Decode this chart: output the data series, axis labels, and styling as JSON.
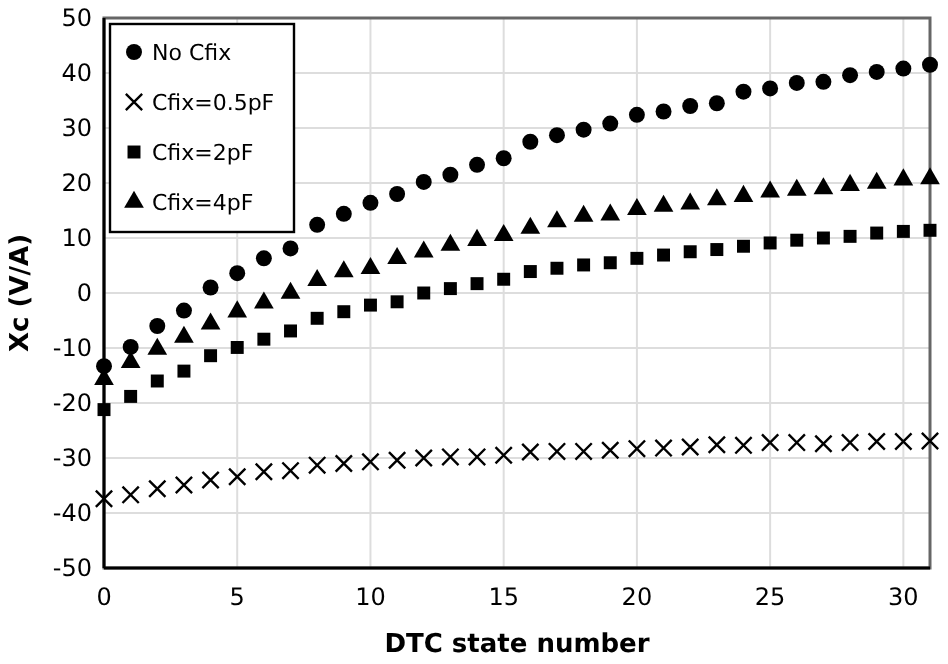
{
  "chart_data": {
    "type": "scatter",
    "xlabel": "DTC state number",
    "ylabel": "Xc (V/A)",
    "x": [
      0,
      1,
      2,
      3,
      4,
      5,
      6,
      7,
      8,
      9,
      10,
      11,
      12,
      13,
      14,
      15,
      16,
      17,
      18,
      19,
      20,
      21,
      22,
      23,
      24,
      25,
      26,
      27,
      28,
      29,
      30,
      31
    ],
    "xlim": [
      0,
      31
    ],
    "xticks": [
      0,
      5,
      10,
      15,
      20,
      25,
      30
    ],
    "ylim": [
      -50,
      50
    ],
    "yticks": [
      -50,
      -40,
      -30,
      -20,
      -10,
      0,
      10,
      20,
      30,
      40,
      50
    ],
    "grid": true,
    "legend": "top left",
    "series": [
      {
        "name": "No Cfix",
        "color": "#000000",
        "marker": "circle",
        "values": [
          -13.3,
          -9.8,
          -6,
          -3.2,
          1,
          3.6,
          6.3,
          8.1,
          12.4,
          14.4,
          16.4,
          18,
          20.2,
          21.5,
          23.3,
          24.5,
          27.5,
          28.7,
          29.7,
          30.8,
          32.4,
          33,
          34,
          34.5,
          36.6,
          37.2,
          38.2,
          38.4,
          39.6,
          40.2,
          40.8,
          41.5
        ]
      },
      {
        "name": "Cfix=0.5pF",
        "color": "#000000",
        "marker": "cross",
        "values": [
          -37.4,
          -36.7,
          -35.6,
          -34.9,
          -34,
          -33.4,
          -32.5,
          -32.3,
          -31.3,
          -31,
          -30.7,
          -30.4,
          -30,
          -29.8,
          -29.8,
          -29.5,
          -28.9,
          -28.8,
          -28.8,
          -28.6,
          -28.3,
          -28.2,
          -28,
          -27.6,
          -27.7,
          -27.2,
          -27.2,
          -27.4,
          -27.2,
          -27,
          -27,
          -26.9
        ]
      },
      {
        "name": "Cfix=2pF",
        "color": "#000000",
        "marker": "square",
        "values": [
          -21.2,
          -18.8,
          -16,
          -14.2,
          -11.4,
          -9.9,
          -8.4,
          -6.9,
          -4.6,
          -3.4,
          -2.2,
          -1.6,
          0,
          0.8,
          1.7,
          2.5,
          3.9,
          4.5,
          5.1,
          5.5,
          6.3,
          6.9,
          7.5,
          7.9,
          8.5,
          9.1,
          9.6,
          10,
          10.3,
          10.9,
          11.2,
          11.4
        ]
      },
      {
        "name": "Cfix=4pF",
        "color": "#000000",
        "marker": "triangle",
        "values": [
          -15.7,
          -12.6,
          -10.2,
          -8,
          -5.6,
          -3.4,
          -1.8,
          0,
          2.3,
          3.9,
          4.5,
          6.3,
          7.5,
          8.7,
          9.6,
          10.5,
          11.8,
          13,
          14,
          14.2,
          15.2,
          15.8,
          16.2,
          17,
          17.6,
          18.4,
          18.7,
          19,
          19.6,
          20,
          20.6,
          20.8
        ]
      }
    ]
  }
}
